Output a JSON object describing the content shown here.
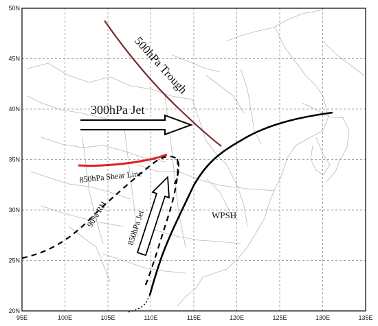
{
  "map": {
    "lon_ticks": [
      "95E",
      "100E",
      "105E",
      "110E",
      "115E",
      "120E",
      "125E",
      "130E",
      "135E"
    ],
    "lat_ticks": [
      "20N",
      "25N",
      "30N",
      "35N",
      "40N",
      "45N",
      "50N"
    ],
    "extent": {
      "lon": [
        95,
        135
      ],
      "lat": [
        20,
        50
      ]
    },
    "grid": "dashed",
    "features": {
      "trough_500": {
        "label": "500hPa Trough",
        "color": "#7a2a2a"
      },
      "jet_300": {
        "label": "300hPa Jet",
        "color": "#000000"
      },
      "shear_850": {
        "label": "850hPa Shear Line",
        "color": "#e02020"
      },
      "rh_90": {
        "label": "90% RH",
        "color": "#000000"
      },
      "jet_850": {
        "label": "850hPa Jet",
        "color": "#000000"
      },
      "wpsh": {
        "label": "WPSH",
        "color": "#000000"
      }
    }
  }
}
